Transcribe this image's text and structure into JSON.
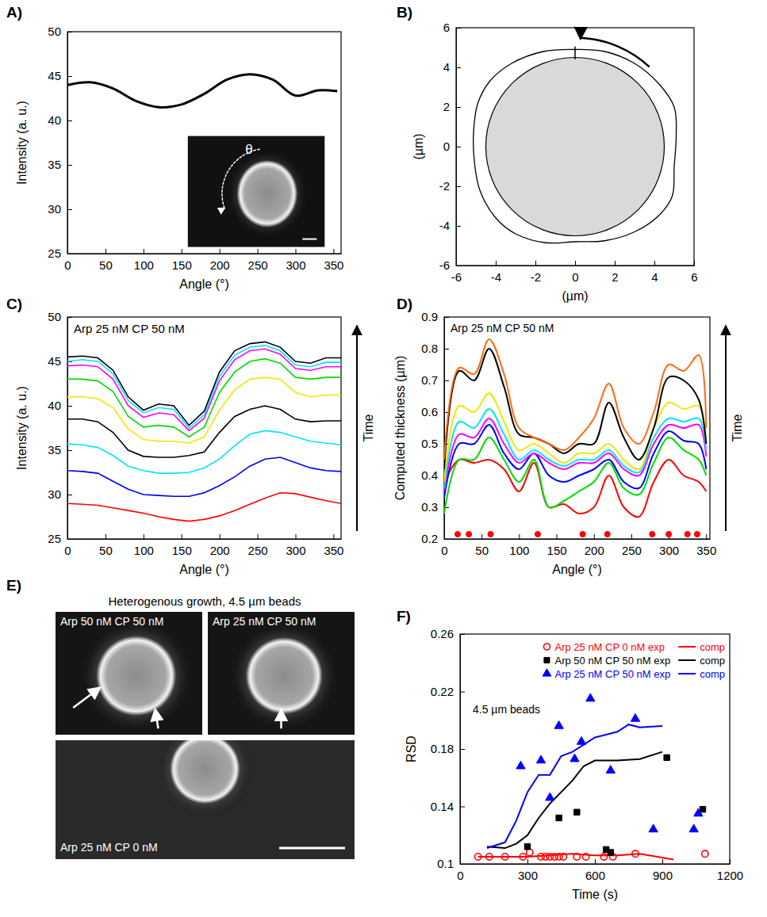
{
  "chart_data": [
    {
      "type": "line",
      "letter": "A)",
      "x_label": "Angle (°)",
      "y_label": "Intensity (a. u.)",
      "inset_label": "θ",
      "x": [
        0,
        30,
        60,
        90,
        120,
        150,
        180,
        210,
        240,
        270,
        300,
        330,
        355
      ],
      "series": [
        {
          "color": "#000000",
          "values": [
            44.0,
            44.3,
            43.6,
            42.2,
            41.5,
            41.8,
            43.0,
            44.6,
            45.2,
            44.6,
            42.8,
            43.4,
            43.3
          ]
        }
      ],
      "xlim": [
        0,
        360
      ],
      "xticks": [
        0,
        50,
        100,
        150,
        200,
        250,
        300,
        350
      ],
      "ylim": [
        25,
        50
      ],
      "yticks": [
        25,
        30,
        35,
        40,
        45,
        50
      ]
    },
    {
      "type": "contour",
      "letter": "B)",
      "x_label": "(µm)",
      "y_label": "(µm)",
      "circle_radius": 4.5,
      "x": [
        0,
        1.5,
        3,
        4.2,
        5.0,
        5.1,
        5.0,
        4.9,
        4.2,
        3,
        1.5,
        0,
        -1.5,
        -3,
        -4,
        -4.8,
        -5.1,
        -5.1,
        -4.9,
        -4.3,
        -3.2,
        -1.6,
        0
      ],
      "series": [
        {
          "color": "#000000",
          "values": [
            4.9,
            4.8,
            4.2,
            3.2,
            2.0,
            0.5,
            -1,
            -2.5,
            -3.5,
            -4.3,
            -4.75,
            -4.8,
            -4.85,
            -4.4,
            -3.6,
            -2.2,
            -0.5,
            1.0,
            2.2,
            3.3,
            4.2,
            4.8,
            4.9
          ]
        }
      ],
      "xlim": [
        -6,
        6
      ],
      "xticks": [
        -6,
        -4,
        -2,
        0,
        2,
        4,
        6
      ],
      "ylim": [
        -6,
        6
      ],
      "yticks": [
        -6,
        -4,
        -2,
        0,
        2,
        4,
        6
      ]
    },
    {
      "type": "line",
      "letter": "C)",
      "x_label": "Angle (°)",
      "y_label": "Intensity (a. u.)",
      "annotation": "Arp 25 nM CP 50 nM",
      "arrow_label": "Time",
      "x": [
        0,
        20,
        40,
        60,
        80,
        100,
        120,
        140,
        160,
        180,
        200,
        220,
        240,
        260,
        280,
        300,
        320,
        340,
        360
      ],
      "series": [
        {
          "color": "#ff0000",
          "values": [
            29,
            28.9,
            28.8,
            28.5,
            28.2,
            27.9,
            27.5,
            27.2,
            27.0,
            27.2,
            27.6,
            28.2,
            28.9,
            29.6,
            30.2,
            30.1,
            29.7,
            29.3,
            29.0
          ]
        },
        {
          "color": "#0000ff",
          "values": [
            32.7,
            32.6,
            32.4,
            31.5,
            30.6,
            30.0,
            29.9,
            29.8,
            29.8,
            30.2,
            31.0,
            32.0,
            33.2,
            34.0,
            34.2,
            33.6,
            33.0,
            32.7,
            32.6
          ]
        },
        {
          "color": "#00e5ff",
          "values": [
            35.7,
            35.6,
            35.3,
            34.4,
            33.2,
            32.7,
            32.4,
            32.4,
            32.5,
            33.0,
            34.0,
            35.5,
            36.8,
            37.2,
            37.0,
            36.5,
            36.0,
            35.8,
            35.6
          ]
        },
        {
          "color": "#000000",
          "values": [
            38.5,
            38.5,
            38.2,
            37.0,
            35.0,
            34.3,
            34.2,
            34.2,
            34.4,
            34.8,
            37.0,
            38.8,
            39.6,
            40.0,
            39.6,
            38.5,
            38.2,
            38.3,
            38.3
          ]
        },
        {
          "color": "#f2e600",
          "values": [
            41,
            41,
            40.8,
            39.8,
            37.4,
            36.2,
            36.0,
            36.0,
            35.8,
            36.5,
            39.5,
            41.8,
            43.0,
            43.2,
            43.0,
            41.5,
            41.0,
            41.2,
            41.2
          ]
        },
        {
          "color": "#00dd00",
          "values": [
            43,
            43,
            42.8,
            41.6,
            38.8,
            37.6,
            37.8,
            37.6,
            36.5,
            37.6,
            41.5,
            43.8,
            45.0,
            45.3,
            44.8,
            43.2,
            43.0,
            43.2,
            43.2
          ]
        },
        {
          "color": "#ff00ff",
          "values": [
            44.5,
            44.6,
            44.4,
            43.0,
            40.0,
            38.7,
            39.2,
            39.0,
            37.2,
            38.6,
            42.8,
            45.2,
            46.2,
            46.4,
            45.8,
            44.2,
            44.0,
            44.4,
            44.4
          ]
        },
        {
          "color": "#00e5ff",
          "values": [
            45,
            45.2,
            45,
            43.6,
            40.6,
            39.2,
            39.8,
            39.6,
            37.5,
            39.0,
            43.3,
            45.7,
            46.6,
            46.8,
            46.2,
            44.6,
            44.4,
            44.9,
            44.9
          ]
        },
        {
          "color": "#000000",
          "values": [
            45.5,
            45.6,
            45.4,
            44.0,
            41.0,
            39.5,
            40.2,
            40.0,
            37.8,
            39.4,
            43.8,
            46.2,
            47.0,
            47.2,
            46.6,
            45.0,
            44.8,
            45.4,
            45.4
          ]
        }
      ],
      "xlim": [
        0,
        360
      ],
      "xticks": [
        0,
        50,
        100,
        150,
        200,
        250,
        300,
        350
      ],
      "ylim": [
        25,
        50
      ],
      "yticks": [
        25,
        30,
        35,
        40,
        45,
        50
      ]
    },
    {
      "type": "line",
      "letter": "D)",
      "x_label": "Angle (°)",
      "y_label": "Computed thickness (µm)",
      "annotation": "Arp 25 nM CP 50 nM",
      "arrow_label": "Time",
      "x": [
        0,
        20,
        40,
        60,
        80,
        100,
        120,
        140,
        160,
        180,
        200,
        220,
        240,
        260,
        280,
        300,
        320,
        340,
        350
      ],
      "series": [
        {
          "color": "#ff0000",
          "values": [
            0.38,
            0.45,
            0.44,
            0.45,
            0.42,
            0.35,
            0.44,
            0.3,
            0.31,
            0.28,
            0.3,
            0.4,
            0.3,
            0.27,
            0.38,
            0.45,
            0.4,
            0.38,
            0.35
          ]
        },
        {
          "color": "#00dd00",
          "values": [
            0.28,
            0.45,
            0.45,
            0.52,
            0.45,
            0.38,
            0.45,
            0.3,
            0.32,
            0.35,
            0.38,
            0.44,
            0.36,
            0.34,
            0.44,
            0.52,
            0.48,
            0.45,
            0.4
          ]
        },
        {
          "color": "#0000ff",
          "values": [
            0.33,
            0.5,
            0.5,
            0.56,
            0.47,
            0.42,
            0.47,
            0.4,
            0.38,
            0.4,
            0.42,
            0.45,
            0.38,
            0.36,
            0.47,
            0.54,
            0.51,
            0.5,
            0.42
          ]
        },
        {
          "color": "#ff00ff",
          "values": [
            0.35,
            0.53,
            0.52,
            0.58,
            0.5,
            0.44,
            0.47,
            0.44,
            0.42,
            0.44,
            0.44,
            0.47,
            0.42,
            0.4,
            0.5,
            0.56,
            0.55,
            0.56,
            0.46
          ]
        },
        {
          "color": "#00e5ff",
          "values": [
            0.36,
            0.57,
            0.55,
            0.61,
            0.53,
            0.45,
            0.48,
            0.45,
            0.43,
            0.45,
            0.45,
            0.48,
            0.43,
            0.41,
            0.52,
            0.58,
            0.57,
            0.58,
            0.48
          ]
        },
        {
          "color": "#f2e600",
          "values": [
            0.38,
            0.62,
            0.6,
            0.66,
            0.57,
            0.48,
            0.5,
            0.47,
            0.44,
            0.47,
            0.47,
            0.5,
            0.45,
            0.42,
            0.55,
            0.63,
            0.61,
            0.62,
            0.5
          ]
        },
        {
          "color": "#000000",
          "values": [
            0.42,
            0.73,
            0.7,
            0.8,
            0.68,
            0.53,
            0.52,
            0.5,
            0.47,
            0.5,
            0.5,
            0.63,
            0.52,
            0.45,
            0.55,
            0.71,
            0.7,
            0.64,
            0.5
          ]
        },
        {
          "color": "#ff6a13",
          "values": [
            0.45,
            0.74,
            0.72,
            0.83,
            0.72,
            0.55,
            0.52,
            0.5,
            0.48,
            0.52,
            0.58,
            0.69,
            0.55,
            0.5,
            0.6,
            0.75,
            0.73,
            0.78,
            0.55
          ]
        },
        {
          "type": "scatter",
          "marker": "circle",
          "color": "#ff0000",
          "x": [
            18,
            33,
            62,
            125,
            185,
            218,
            278,
            300,
            325,
            338
          ],
          "values": [
            0.215,
            0.215,
            0.215,
            0.215,
            0.215,
            0.215,
            0.215,
            0.215,
            0.215,
            0.215
          ]
        }
      ],
      "xlim": [
        0,
        355
      ],
      "xticks": [
        0,
        50,
        100,
        150,
        200,
        250,
        300,
        350
      ],
      "ylim": [
        0.2,
        0.9
      ],
      "yticks": [
        0.2,
        0.3,
        0.4,
        0.5,
        0.6,
        0.7,
        0.8,
        0.9
      ]
    },
    {
      "type": "image",
      "letter": "E)",
      "title": "Heterogenous growth, 4.5 µm beads",
      "images": [
        {
          "label": "Arp 50 nM CP 50 nM"
        },
        {
          "label": "Arp 25 nM CP 50 nM"
        },
        {
          "label": "Arp 25 nM CP 0 nM"
        }
      ]
    },
    {
      "type": "scatter",
      "letter": "F)",
      "x_label": "Time (s)",
      "y_label": "RSD",
      "annotation": "4.5 µm beads",
      "legend": "upper right",
      "series": [
        {
          "name": "Arp 25 nM CP 0 nM exp",
          "type": "scatter",
          "marker": "circle-open",
          "color": "#ff0000",
          "x": [
            80,
            130,
            200,
            280,
            310,
            360,
            380,
            400,
            420,
            440,
            460,
            520,
            560,
            640,
            680,
            780,
            1090
          ],
          "values": [
            0.105,
            0.105,
            0.105,
            0.105,
            0.108,
            0.105,
            0.105,
            0.105,
            0.105,
            0.105,
            0.105,
            0.105,
            0.105,
            0.105,
            0.105,
            0.107,
            0.107
          ]
        },
        {
          "name": "comp",
          "type": "line",
          "color": "#ff0000",
          "x": [
            80,
            300,
            500,
            600,
            700,
            800,
            950
          ],
          "values": [
            0.105,
            0.105,
            0.107,
            0.106,
            0.106,
            0.107,
            0.103
          ]
        },
        {
          "name": "Arp 50 nM CP 50 nM exp",
          "type": "scatter",
          "marker": "square",
          "color": "#000000",
          "x": [
            300,
            440,
            520,
            650,
            670,
            920,
            1080
          ],
          "values": [
            0.112,
            0.132,
            0.136,
            0.11,
            0.108,
            0.174,
            0.138
          ]
        },
        {
          "name": "comp",
          "type": "line",
          "color": "#000000",
          "x": [
            120,
            200,
            250,
            300,
            350,
            400,
            450,
            500,
            550,
            600,
            700,
            800,
            900
          ],
          "values": [
            0.112,
            0.111,
            0.114,
            0.12,
            0.132,
            0.142,
            0.15,
            0.158,
            0.168,
            0.172,
            0.172,
            0.173,
            0.178
          ]
        },
        {
          "name": "Arp 25 nM CP 50 nM exp",
          "type": "scatter",
          "marker": "triangle",
          "color": "#0000ff",
          "x": [
            270,
            360,
            400,
            440,
            510,
            540,
            580,
            670,
            780,
            860,
            1040,
            1060
          ],
          "values": [
            0.168,
            0.172,
            0.146,
            0.196,
            0.173,
            0.185,
            0.215,
            0.165,
            0.201,
            0.124,
            0.124,
            0.135
          ]
        },
        {
          "name": "comp",
          "type": "line",
          "color": "#0000ff",
          "x": [
            120,
            200,
            250,
            300,
            350,
            400,
            450,
            500,
            550,
            600,
            700,
            750,
            800,
            900
          ],
          "values": [
            0.111,
            0.115,
            0.13,
            0.15,
            0.162,
            0.162,
            0.175,
            0.178,
            0.183,
            0.188,
            0.192,
            0.197,
            0.195,
            0.196
          ]
        }
      ],
      "xlim": [
        0,
        1200
      ],
      "xticks": [
        0,
        300,
        600,
        900,
        1200
      ],
      "ylim": [
        0.1,
        0.26
      ],
      "yticks": [
        0.1,
        0.14,
        0.18,
        0.22,
        0.26
      ]
    }
  ]
}
